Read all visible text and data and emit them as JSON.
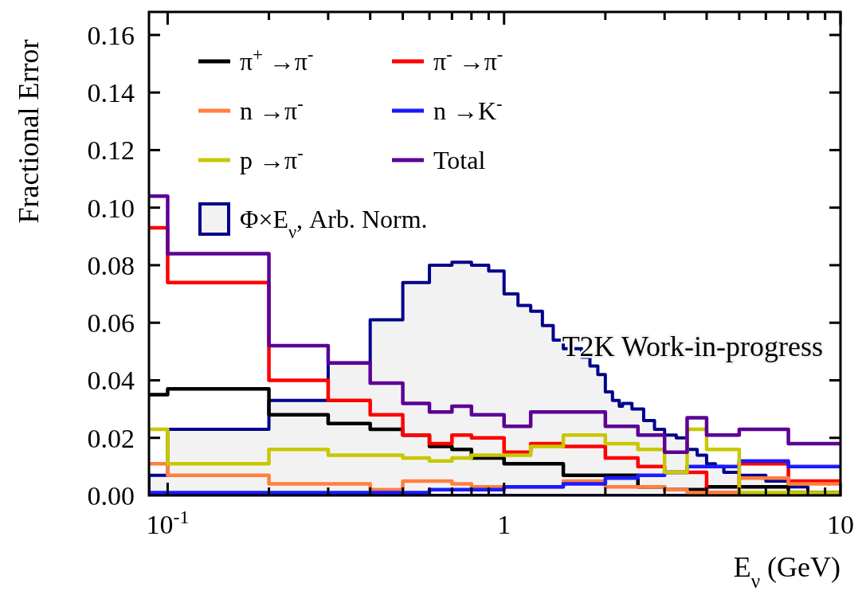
{
  "chart_data": {
    "type": "step",
    "xlabel": "E$_{ν}$ (GeV)",
    "ylabel": "Fractional Error",
    "log": "x",
    "legend": "top left",
    "annotations": [
      "T2K Work-in-progress"
    ],
    "xlim": [
      0.088,
      10
    ],
    "ylim": [
      0,
      0.168
    ],
    "xticks": [
      {
        "value": 0.1,
        "label": "10$^{-1}$"
      },
      {
        "value": 0.2,
        "label": null
      },
      {
        "value": 0.3,
        "label": null
      },
      {
        "value": 0.4,
        "label": null
      },
      {
        "value": 0.5,
        "label": null
      },
      {
        "value": 0.6,
        "label": null
      },
      {
        "value": 0.7,
        "label": null
      },
      {
        "value": 0.8,
        "label": null
      },
      {
        "value": 0.9,
        "label": null
      },
      1,
      {
        "value": 2,
        "label": null
      },
      {
        "value": 3,
        "label": null
      },
      {
        "value": 4,
        "label": null
      },
      {
        "value": 5,
        "label": null
      },
      {
        "value": 6,
        "label": null
      },
      {
        "value": 7,
        "label": null
      },
      {
        "value": 8,
        "label": null
      },
      {
        "value": 9,
        "label": null
      },
      10
    ],
    "yticks": [
      {
        "value": 0,
        "label": "0.00"
      },
      {
        "value": 0.02,
        "label": "0.02"
      },
      {
        "value": 0.04,
        "label": "0.04"
      },
      {
        "value": 0.06,
        "label": "0.06"
      },
      {
        "value": 0.08,
        "label": "0.08"
      },
      {
        "value": 0.1,
        "label": "0.10"
      },
      {
        "value": 0.12,
        "label": "0.12"
      },
      {
        "value": 0.14,
        "label": "0.14"
      },
      {
        "value": 0.16,
        "label": "0.16"
      }
    ],
    "series": [
      {
        "name": "π$^{+}$ →π$^{-}$",
        "color": "#000000",
        "x": [
          0.088,
          0.1,
          0.2,
          0.3,
          0.4,
          0.5,
          0.6,
          0.7,
          0.8,
          1.0,
          1.2,
          1.5,
          2.0,
          2.5,
          3.0,
          3.5,
          4.0,
          5.0,
          7.0,
          10
        ],
        "values": [
          0.035,
          0.037,
          0.028,
          0.025,
          0.023,
          0.021,
          0.017,
          0.016,
          0.013,
          0.011,
          0.011,
          0.007,
          0.007,
          0.003,
          0.002,
          0.002,
          0.003,
          0.003,
          0.001,
          0.001
        ]
      },
      {
        "name": "π$^{-}$ →π$^{-}$",
        "color": "#ff0000",
        "x": [
          0.088,
          0.1,
          0.2,
          0.3,
          0.4,
          0.5,
          0.6,
          0.7,
          0.8,
          1.0,
          1.2,
          1.5,
          2.0,
          2.5,
          3.0,
          3.5,
          4.0,
          5.0,
          7.0,
          10
        ],
        "values": [
          0.093,
          0.074,
          0.04,
          0.033,
          0.028,
          0.021,
          0.018,
          0.021,
          0.02,
          0.015,
          0.018,
          0.017,
          0.013,
          0.01,
          0.008,
          0.008,
          0.001,
          0.011,
          0.005,
          0.005
        ]
      },
      {
        "name": "n →π$^{-}$",
        "color": "#ff7f3f",
        "x": [
          0.088,
          0.1,
          0.2,
          0.3,
          0.4,
          0.5,
          0.6,
          0.7,
          0.8,
          1.0,
          1.2,
          1.5,
          2.0,
          2.5,
          3.0,
          3.5,
          4.0,
          5.0,
          7.0,
          10
        ],
        "values": [
          0.011,
          0.007,
          0.004,
          0.004,
          0.002,
          0.005,
          0.005,
          0.004,
          0.003,
          0.003,
          0.003,
          0.005,
          0.003,
          0.003,
          0.002,
          0.001,
          0.001,
          0.006,
          0.004,
          0.004
        ]
      },
      {
        "name": "n →K$^{-}$",
        "color": "#1a1aff",
        "x": [
          0.088,
          0.1,
          0.2,
          0.3,
          0.4,
          0.5,
          0.6,
          0.7,
          0.8,
          1.0,
          1.2,
          1.5,
          2.0,
          2.5,
          3.0,
          3.5,
          4.0,
          5.0,
          7.0,
          10
        ],
        "values": [
          0.001,
          0.001,
          0.001,
          0.001,
          0.001,
          0.001,
          0.002,
          0.002,
          0.002,
          0.003,
          0.003,
          0.004,
          0.006,
          0.007,
          0.008,
          0.01,
          0.01,
          0.012,
          0.01,
          0.01
        ]
      },
      {
        "name": "p →π$^{-}$",
        "color": "#c8c800",
        "x": [
          0.088,
          0.1,
          0.2,
          0.3,
          0.4,
          0.5,
          0.6,
          0.7,
          0.8,
          1.0,
          1.2,
          1.5,
          2.0,
          2.5,
          3.0,
          3.5,
          4.0,
          5.0,
          7.0,
          10
        ],
        "values": [
          0.023,
          0.011,
          0.016,
          0.014,
          0.014,
          0.013,
          0.012,
          0.013,
          0.014,
          0.014,
          0.017,
          0.021,
          0.018,
          0.016,
          0.008,
          0.023,
          0.016,
          0.001,
          0.001,
          0.001
        ]
      },
      {
        "name": "Total",
        "color": "#5c0096",
        "x": [
          0.088,
          0.1,
          0.2,
          0.3,
          0.4,
          0.5,
          0.6,
          0.7,
          0.8,
          1.0,
          1.2,
          1.5,
          2.0,
          2.5,
          3.0,
          3.5,
          4.0,
          5.0,
          7.0,
          10
        ],
        "values": [
          0.104,
          0.084,
          0.052,
          0.046,
          0.039,
          0.032,
          0.029,
          0.031,
          0.028,
          0.024,
          0.029,
          0.029,
          0.024,
          0.021,
          0.015,
          0.027,
          0.021,
          0.023,
          0.018,
          0.018
        ]
      },
      {
        "name": "Φ×E$_{ν}$, Arb. Norm.",
        "type": "area",
        "color": "#00008b",
        "x": [
          0.088,
          0.1,
          0.2,
          0.3,
          0.4,
          0.5,
          0.6,
          0.7,
          0.8,
          0.9,
          1.0,
          1.1,
          1.2,
          1.3,
          1.4,
          1.5,
          1.7,
          1.8,
          1.9,
          2.0,
          2.1,
          2.2,
          2.25,
          2.4,
          2.6,
          2.8,
          3.0,
          3.25,
          3.5,
          3.75,
          4.0,
          4.25,
          4.5,
          5.0,
          6.0,
          7.0,
          8.0,
          9.0,
          10
        ],
        "values": [
          0.007,
          0.023,
          0.033,
          0.046,
          0.061,
          0.074,
          0.08,
          0.081,
          0.08,
          0.078,
          0.07,
          0.066,
          0.064,
          0.059,
          0.054,
          0.051,
          0.048,
          0.045,
          0.042,
          0.036,
          0.033,
          0.031,
          0.032,
          0.03,
          0.026,
          0.023,
          0.021,
          0.02,
          0.016,
          0.014,
          0.011,
          0.01,
          0.008,
          0.007,
          0.005,
          0.003,
          0.001,
          0.001,
          0.001
        ]
      }
    ]
  }
}
